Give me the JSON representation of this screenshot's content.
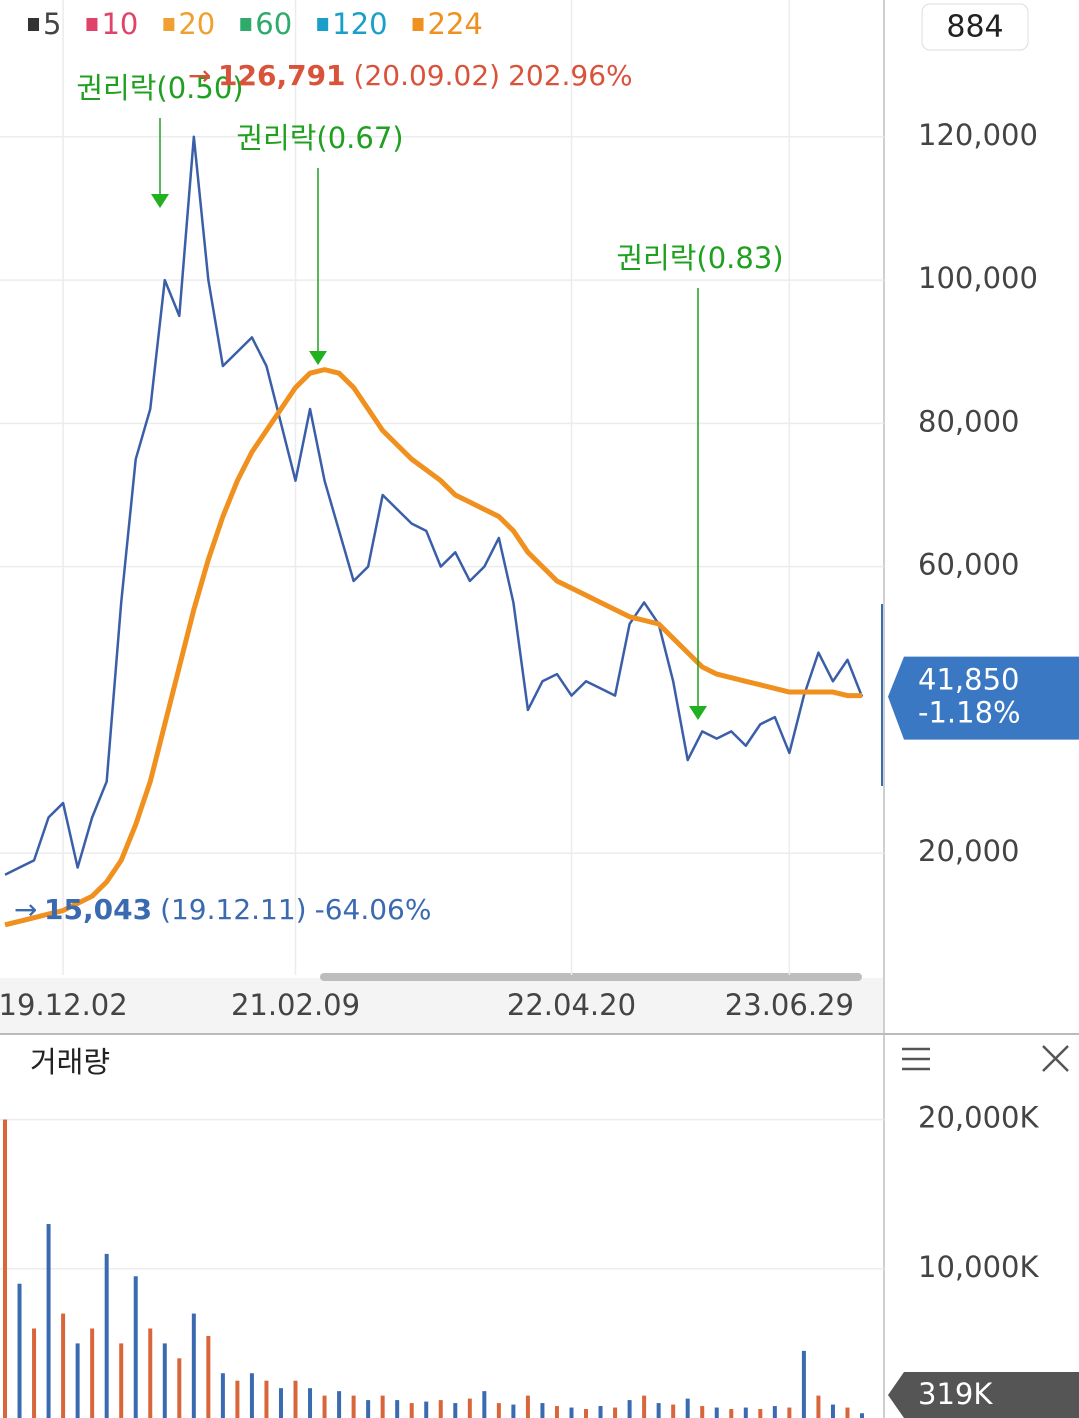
{
  "chart_data": [
    {
      "type": "line",
      "legend": [
        {
          "name": "5",
          "color": "#333333"
        },
        {
          "name": "10",
          "color": "#e0436a"
        },
        {
          "name": "20",
          "color": "#f0a030"
        },
        {
          "name": "60",
          "color": "#2eaa6a"
        },
        {
          "name": "120",
          "color": "#1aa0c8"
        },
        {
          "name": "224",
          "color": "#f0901e"
        }
      ],
      "box_label": "884",
      "categories": [
        null,
        null,
        null,
        null,
        "19.12.02",
        null,
        null,
        null,
        null,
        null,
        null,
        null,
        null,
        null,
        null,
        null,
        null,
        null,
        null,
        null,
        "21.02.09",
        null,
        null,
        null,
        null,
        null,
        null,
        null,
        null,
        null,
        null,
        null,
        null,
        null,
        null,
        null,
        null,
        null,
        null,
        "22.04.20",
        null,
        null,
        null,
        null,
        null,
        null,
        null,
        null,
        null,
        null,
        null,
        null,
        null,
        null,
        "23.06.29",
        null,
        null,
        null,
        null,
        null
      ],
      "series": [
        {
          "color": "#3a5fa8",
          "values": [
            17000,
            18000,
            19000,
            25000,
            27000,
            18000,
            25000,
            30000,
            55000,
            75000,
            82000,
            100000,
            95000,
            120000,
            100000,
            88000,
            90000,
            92000,
            88000,
            80000,
            72000,
            82000,
            72000,
            65000,
            58000,
            60000,
            70000,
            68000,
            66000,
            65000,
            60000,
            62000,
            58000,
            60000,
            64000,
            55000,
            40000,
            44000,
            45000,
            42000,
            44000,
            43000,
            42000,
            52000,
            55000,
            52000,
            44000,
            33000,
            37000,
            36000,
            37000,
            35000,
            38000,
            39000,
            34000,
            42000,
            48000,
            44000,
            47000,
            41850
          ]
        },
        {
          "color": "#f0901e",
          "values": [
            10000,
            10500,
            11000,
            11500,
            12000,
            13000,
            14000,
            16000,
            19000,
            24000,
            30000,
            38000,
            46000,
            54000,
            61000,
            67000,
            72000,
            76000,
            79000,
            82000,
            85000,
            87000,
            87500,
            87000,
            85000,
            82000,
            79000,
            77000,
            75000,
            73500,
            72000,
            70000,
            69000,
            68000,
            67000,
            65000,
            62000,
            60000,
            58000,
            57000,
            56000,
            55000,
            54000,
            53000,
            52500,
            52000,
            50000,
            48000,
            46000,
            45000,
            44500,
            44000,
            43500,
            43000,
            42500,
            42500,
            42500,
            42500,
            42000,
            42000
          ]
        }
      ],
      "ylim": [
        3000,
        137000
      ],
      "yticks": [
        {
          "value": 20000,
          "label": "20,000"
        },
        {
          "value": 60000,
          "label": "60,000"
        },
        {
          "value": 80000,
          "label": "80,000"
        },
        {
          "value": 100000,
          "label": "100,000"
        },
        {
          "value": 120000,
          "label": "120,000"
        }
      ],
      "grid": true,
      "annotations": [
        "권리락(0.50)",
        "권리락(0.67)",
        "권리락(0.83)"
      ],
      "high": {
        "label": "126,791",
        "date": "(20.09.02)",
        "change": "202.96%"
      },
      "low": {
        "label": "15,043",
        "date": "(19.12.11)",
        "change": "-64.06%"
      },
      "last": {
        "label": "41,850",
        "change": "-1.18%"
      }
    },
    {
      "type": "bar",
      "title": "거래량",
      "color": "#d9653b",
      "values": [
        20000,
        9000,
        6000,
        13000,
        7000,
        5000,
        6000,
        11000,
        5000,
        9500,
        6000,
        5000,
        4000,
        7000,
        5500,
        3000,
        2500,
        3000,
        2500,
        2000,
        2500,
        2000,
        1500,
        1800,
        1500,
        1200,
        1500,
        1200,
        1000,
        1100,
        1200,
        1000,
        1300,
        1800,
        1000,
        900,
        1500,
        1000,
        800,
        700,
        600,
        800,
        700,
        1200,
        1500,
        1000,
        900,
        1300,
        800,
        700,
        600,
        700,
        600,
        800,
        700,
        4500,
        1500,
        900,
        700,
        319
      ],
      "ylim": [
        0,
        25000
      ],
      "yticks": [
        {
          "value": 10000,
          "label": "10,000K"
        },
        {
          "value": 20000,
          "label": "20,000K"
        }
      ],
      "last_label": "319K"
    }
  ]
}
